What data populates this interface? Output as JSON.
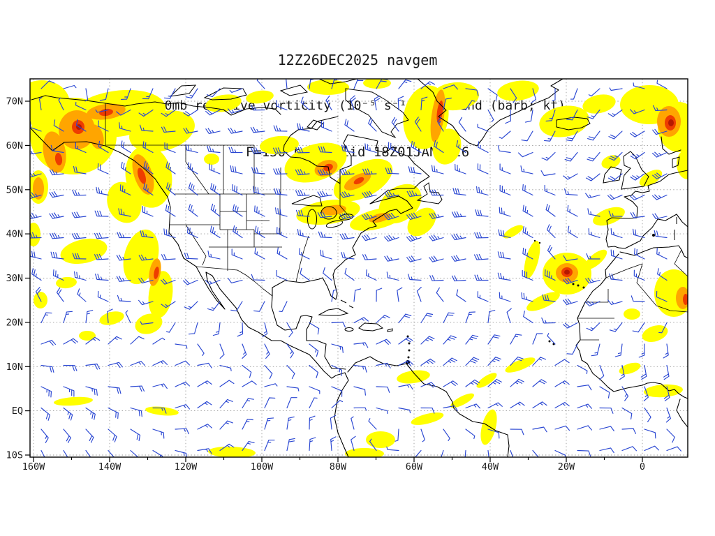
{
  "title": {
    "line1": "12Z26DEC2025 navgem",
    "line2": "700mb relative vorticity (10⁻⁵ s⁻¹) and wind (barb; kt)",
    "line3": "F=150 h ; Valid 18Z01JAN2026"
  },
  "axes": {
    "lat_labels": [
      "70N",
      "60N",
      "50N",
      "40N",
      "30N",
      "20N",
      "10N",
      "EQ",
      "10S"
    ],
    "lat_values": [
      70,
      60,
      50,
      40,
      30,
      20,
      10,
      0,
      -10
    ],
    "lon_labels": [
      "160W",
      "140W",
      "120W",
      "100W",
      "80W",
      "60W",
      "40W",
      "20W",
      "0"
    ],
    "lon_values": [
      -160,
      -140,
      -120,
      -100,
      -80,
      -60,
      -40,
      -20,
      0
    ]
  },
  "colors": {
    "barb": "#2946d2",
    "vorticity_low": "#ffff00",
    "vorticity_mid": "#ffa500",
    "vorticity_high": "#ee3c00",
    "vorticity_extreme": "#b61800",
    "coastline": "#000000",
    "grid": "#9a9a9a",
    "text": "#1a1a1a",
    "background": "#ffffff"
  },
  "chart_data": {
    "type": "map",
    "model": "navgem",
    "initialization": "12Z26DEC2025",
    "level": "700mb",
    "shaded_field": "relative vorticity",
    "shaded_units": "10⁻⁵ s⁻¹",
    "vector_field": "wind",
    "vector_style": "barb",
    "vector_units": "kt",
    "forecast_hour": "F=150 h",
    "valid_time": "18Z01JAN2026",
    "lon_range_deg": [
      -161,
      12
    ],
    "lat_range_deg": [
      -10.5,
      75
    ],
    "grid_interval_deg": {
      "lat": 10,
      "lon": 20
    },
    "vorticity_maxima_regions": [
      "Gulf of Alaska / Alaska panhandle",
      "Northwest Canada",
      "Hudson Bay / central Canada",
      "Great Lakes / St. Lawrence band",
      "Baffin Island / Davis Strait streak",
      "North Atlantic near Iceland",
      "Far northeast Atlantic (top right maximum)",
      "Subtropical cyclone near 31N 21W",
      "Trough offshore of US West Coast",
      "Northwest Africa",
      "ITCZ filaments near the equator"
    ]
  }
}
